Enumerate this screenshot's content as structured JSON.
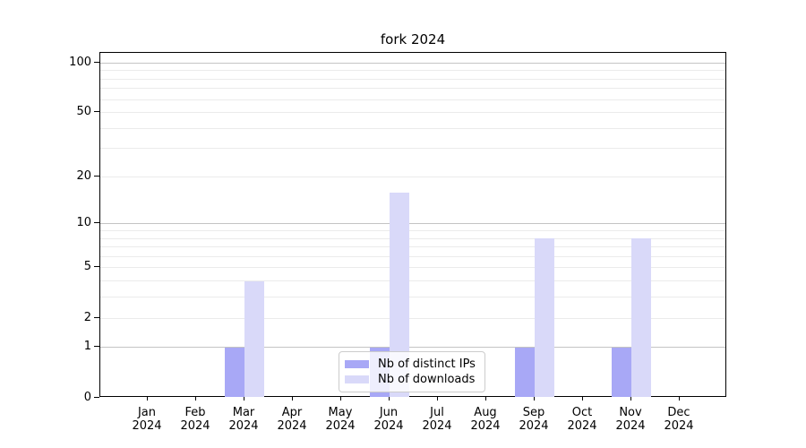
{
  "title": "fork 2024",
  "chart_data": {
    "type": "bar",
    "title": "fork 2024",
    "categories": [
      "Jan 2024",
      "Feb 2024",
      "Mar 2024",
      "Apr 2024",
      "May 2024",
      "Jun 2024",
      "Jul 2024",
      "Aug 2024",
      "Sep 2024",
      "Oct 2024",
      "Nov 2024",
      "Dec 2024"
    ],
    "series": [
      {
        "name": "Nb of distinct IPs",
        "color": "#a8a8f6",
        "values": [
          0,
          0,
          1,
          0,
          0,
          1,
          0,
          0,
          1,
          0,
          1,
          0
        ]
      },
      {
        "name": "Nb of downloads",
        "color": "#d9d9f9",
        "values": [
          0,
          0,
          4,
          0,
          0,
          16,
          0,
          0,
          8,
          0,
          8,
          0
        ]
      }
    ],
    "xlabel": "",
    "ylabel": "",
    "yscale": "log1p",
    "ylim": [
      0,
      115
    ],
    "y_major_ticks": [
      0,
      1,
      2,
      5,
      10,
      20,
      50,
      100
    ],
    "y_major_gridlines": [
      1,
      10,
      100
    ],
    "y_minor_gridlines": [
      2,
      3,
      4,
      5,
      6,
      7,
      8,
      9,
      20,
      30,
      40,
      50,
      60,
      70,
      80,
      90
    ],
    "grid": true,
    "legend_position": "lower center"
  }
}
